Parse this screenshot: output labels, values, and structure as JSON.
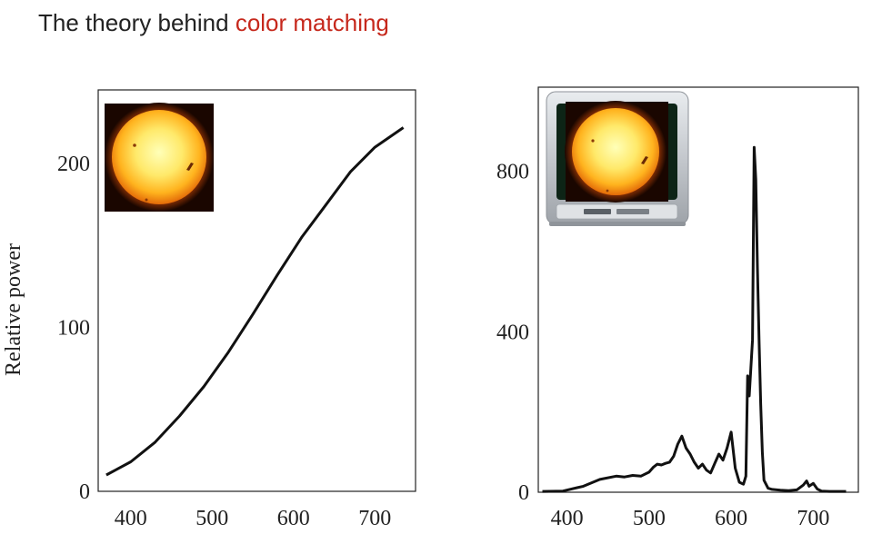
{
  "title": {
    "prefix": "The theory behind ",
    "accent": "color matching",
    "accent_color": "#c6281c"
  },
  "ylabel": "Relative power",
  "icons": {
    "left": "sun-icon",
    "right": "tv-sun-icon"
  },
  "chart_data": [
    {
      "type": "line",
      "title": "",
      "xlabel": "",
      "ylabel": "Relative power",
      "xlim": [
        360,
        750
      ],
      "ylim": [
        0,
        245
      ],
      "xticks": [
        400,
        500,
        600,
        700
      ],
      "yticks": [
        0,
        100,
        200
      ],
      "grid": false,
      "series": [
        {
          "x": [
            370,
            400,
            430,
            460,
            490,
            520,
            550,
            580,
            610,
            640,
            670,
            700,
            735
          ],
          "y": [
            10,
            18,
            30,
            46,
            64,
            85,
            108,
            132,
            155,
            175,
            195,
            210,
            222
          ]
        }
      ]
    },
    {
      "type": "line",
      "title": "",
      "xlabel": "",
      "ylabel": "",
      "xlim": [
        365,
        755
      ],
      "ylim": [
        0,
        1010
      ],
      "xticks": [
        400,
        500,
        600,
        700
      ],
      "yticks": [
        0,
        400,
        800
      ],
      "grid": false,
      "series": [
        {
          "x": [
            370,
            395,
            420,
            440,
            460,
            470,
            480,
            490,
            500,
            505,
            510,
            515,
            520,
            525,
            530,
            535,
            540,
            545,
            550,
            555,
            560,
            565,
            570,
            575,
            580,
            585,
            590,
            595,
            600,
            605,
            610,
            615,
            618,
            620,
            622,
            624,
            626,
            628,
            630,
            632,
            634,
            636,
            638,
            640,
            645,
            650,
            660,
            670,
            680,
            688,
            692,
            695,
            700,
            705,
            710,
            720,
            740
          ],
          "y": [
            2,
            3,
            15,
            32,
            40,
            38,
            42,
            40,
            50,
            62,
            70,
            68,
            72,
            75,
            90,
            120,
            140,
            110,
            95,
            75,
            60,
            70,
            55,
            48,
            72,
            95,
            80,
            110,
            150,
            60,
            25,
            20,
            40,
            290,
            240,
            310,
            380,
            860,
            780,
            560,
            380,
            220,
            100,
            30,
            10,
            7,
            5,
            4,
            6,
            18,
            28,
            15,
            22,
            8,
            3,
            2,
            2
          ]
        }
      ]
    }
  ]
}
